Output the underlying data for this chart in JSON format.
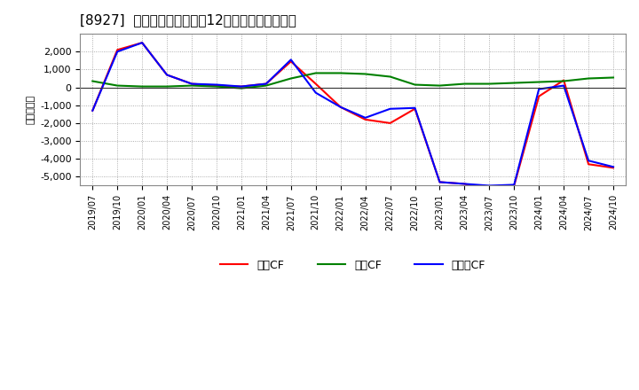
{
  "title": "[8927]  キャッシュフローの12か月移動合計の推移",
  "ylabel": "（百万円）",
  "x_labels": [
    "2019/07",
    "2019/10",
    "2020/01",
    "2020/04",
    "2020/07",
    "2020/10",
    "2021/01",
    "2021/04",
    "2021/07",
    "2021/10",
    "2022/01",
    "2022/04",
    "2022/07",
    "2022/10",
    "2023/01",
    "2023/04",
    "2023/07",
    "2023/10",
    "2024/01",
    "2024/04",
    "2024/07",
    "2024/10"
  ],
  "eigyo_cf": [
    -1300,
    2100,
    2500,
    700,
    200,
    100,
    50,
    200,
    1450,
    200,
    -1100,
    -1800,
    -2000,
    -1200,
    -5300,
    -5400,
    -5700,
    -5500,
    -500,
    400,
    -4300,
    -4500
  ],
  "toshi_cf": [
    350,
    100,
    50,
    50,
    100,
    50,
    -50,
    100,
    500,
    800,
    800,
    750,
    600,
    150,
    100,
    200,
    200,
    250,
    300,
    350,
    500,
    550
  ],
  "free_cf": [
    -1300,
    2000,
    2500,
    700,
    200,
    150,
    50,
    200,
    1550,
    -300,
    -1100,
    -1700,
    -1200,
    -1150,
    -5300,
    -5400,
    -5500,
    -5450,
    -100,
    100,
    -4100,
    -4450
  ],
  "eigyo_color": "#ff0000",
  "toshi_color": "#008000",
  "free_color": "#0000ff",
  "ylim": [
    -5500,
    3000
  ],
  "yticks": [
    -5000,
    -4000,
    -3000,
    -2000,
    -1000,
    0,
    1000,
    2000
  ],
  "bg_color": "#ffffff",
  "plot_bg_color": "#ffffff",
  "grid_color": "#999999",
  "legend_labels": [
    "営業CF",
    "投資CF",
    "フリーCF"
  ]
}
